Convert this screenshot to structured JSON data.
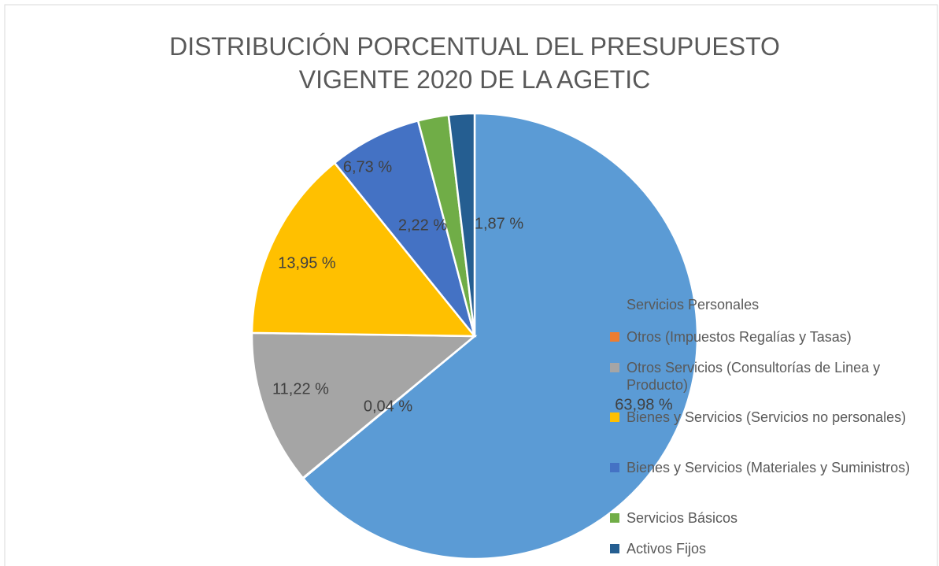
{
  "chart_data": {
    "type": "pie",
    "title": "DISTRIBUCIÓN PORCENTUAL DEL PRESUPUESTO VIGENTE 2020 DE LA AGETIC",
    "categories": [
      "Servicios Personales",
      "Otros (Impuestos Regalías y Tasas)",
      "Otros Servicios (Consultorías de Linea y Producto)",
      "Bienes y Servicios (Servicios no personales)",
      "Bienes y Servicios (Materiales y Suministros)",
      "Servicios Básicos",
      "Activos Fijos"
    ],
    "values": [
      63.98,
      0.04,
      11.22,
      13.95,
      6.73,
      2.22,
      1.87
    ],
    "value_labels": [
      "63,98 %",
      "0,04 %",
      "11,22 %",
      "13,95 %",
      "6,73 %",
      "2,22 %",
      "1,87 %"
    ],
    "colors": [
      "#5b9bd5",
      "#ed7d31",
      "#a5a5a5",
      "#ffc000",
      "#4472c4",
      "#70ad47",
      "#255e91"
    ],
    "legend": "right"
  }
}
